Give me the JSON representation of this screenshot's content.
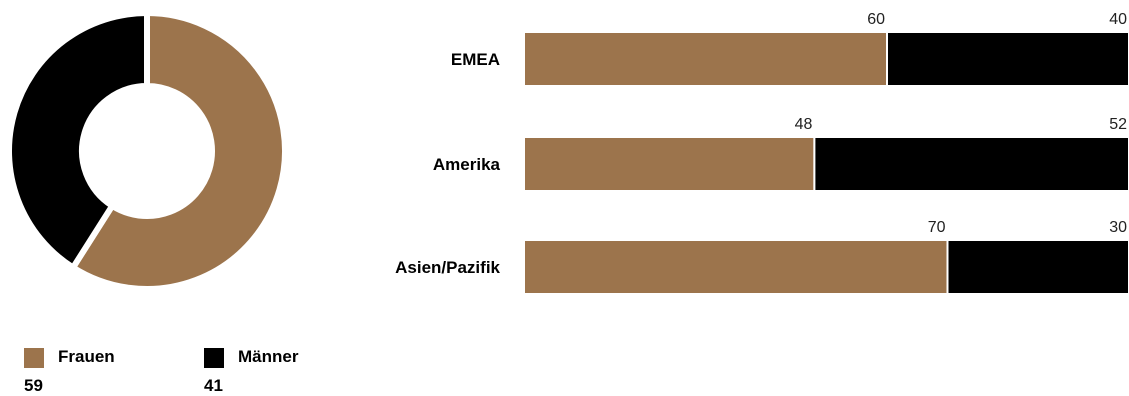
{
  "colors": {
    "women": "#9c744c",
    "men": "#000000"
  },
  "chart_data": [
    {
      "type": "pie",
      "variant": "donut",
      "slices": [
        {
          "name": "Frauen",
          "value": 59,
          "color": "#9c744c"
        },
        {
          "name": "Männer",
          "value": 41,
          "color": "#000000"
        }
      ],
      "legend": {
        "placement": "bottom-left"
      }
    },
    {
      "type": "bar",
      "orientation": "horizontal",
      "stacked": true,
      "categories": [
        "EMEA",
        "Amerika",
        "Asien/Pazifik"
      ],
      "series": [
        {
          "name": "Frauen",
          "values": [
            60,
            48,
            70
          ],
          "color": "#9c744c"
        },
        {
          "name": "Männer",
          "values": [
            40,
            52,
            30
          ],
          "color": "#000000"
        }
      ],
      "xlim": [
        0,
        100
      ]
    }
  ],
  "legend": {
    "items": [
      {
        "label": "Frauen",
        "value": "59"
      },
      {
        "label": "Männer",
        "value": "41"
      }
    ]
  }
}
